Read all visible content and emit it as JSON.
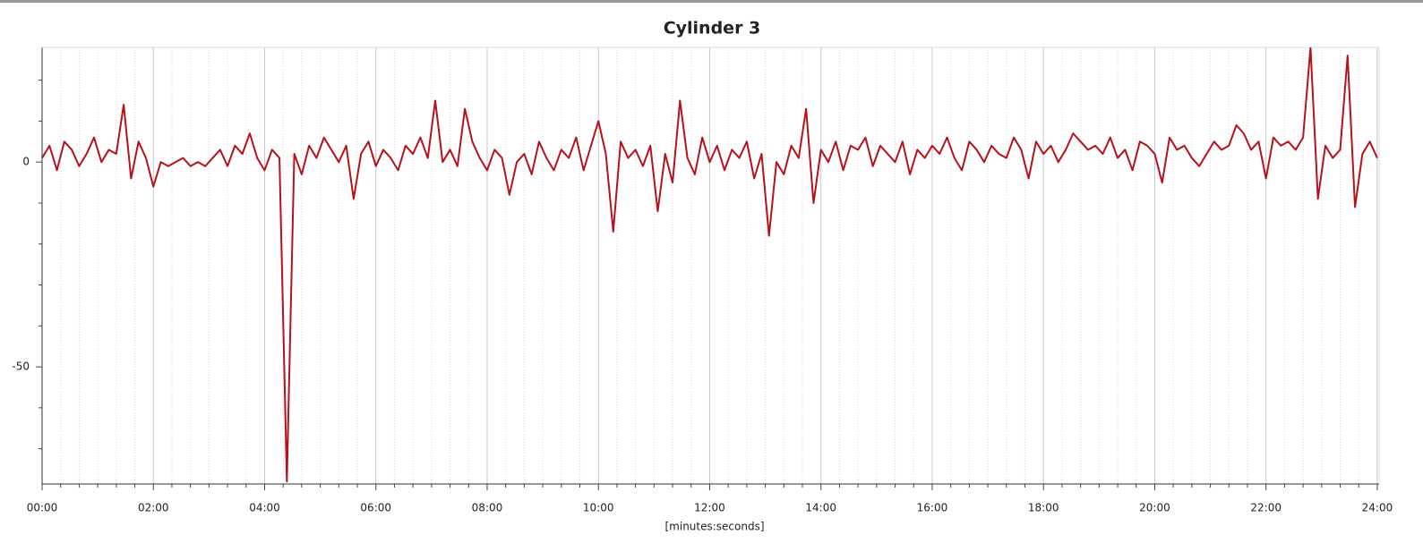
{
  "chart_data": {
    "type": "line",
    "title": "Cylinder 3",
    "x_label": "[minutes:seconds]",
    "xlim": [
      0,
      1442
    ],
    "ylim": [
      -78.6,
      28
    ],
    "xticks": [
      {
        "value": 0,
        "label": "00:00"
      },
      {
        "value": 120,
        "label": "02:00"
      },
      {
        "value": 240,
        "label": "04:00"
      },
      {
        "value": 360,
        "label": "06:00"
      },
      {
        "value": 480,
        "label": "08:00"
      },
      {
        "value": 600,
        "label": "10:00"
      },
      {
        "value": 720,
        "label": "12:00"
      },
      {
        "value": 840,
        "label": "14:00"
      },
      {
        "value": 960,
        "label": "16:00"
      },
      {
        "value": 1080,
        "label": "18:00"
      },
      {
        "value": 1200,
        "label": "20:00"
      },
      {
        "value": 1320,
        "label": "22:00"
      },
      {
        "value": 1440,
        "label": "24:00"
      }
    ],
    "yticks": [
      0,
      -50
    ],
    "yminorticks": [
      20,
      10,
      -10,
      -20,
      -30,
      -40,
      -60,
      -70
    ],
    "grid": true,
    "x": [
      0,
      8,
      16,
      24,
      32,
      40,
      48,
      56,
      64,
      72,
      80,
      88,
      96,
      104,
      112,
      120,
      128,
      136,
      144,
      152,
      160,
      168,
      176,
      184,
      192,
      200,
      208,
      216,
      224,
      232,
      240,
      248,
      256,
      264,
      272,
      280,
      288,
      296,
      304,
      312,
      320,
      328,
      336,
      344,
      352,
      360,
      368,
      376,
      384,
      392,
      400,
      408,
      416,
      424,
      432,
      440,
      448,
      456,
      464,
      472,
      480,
      488,
      496,
      504,
      512,
      520,
      528,
      536,
      544,
      552,
      560,
      568,
      576,
      584,
      592,
      600,
      608,
      616,
      624,
      632,
      640,
      648,
      656,
      664,
      672,
      680,
      688,
      696,
      704,
      712,
      720,
      728,
      736,
      744,
      752,
      760,
      768,
      776,
      784,
      792,
      800,
      808,
      816,
      824,
      832,
      840,
      848,
      856,
      864,
      872,
      880,
      888,
      896,
      904,
      912,
      920,
      928,
      936,
      944,
      952,
      960,
      968,
      976,
      984,
      992,
      1000,
      1008,
      1016,
      1024,
      1032,
      1040,
      1048,
      1056,
      1064,
      1072,
      1080,
      1088,
      1096,
      1104,
      1112,
      1120,
      1128,
      1136,
      1144,
      1152,
      1160,
      1168,
      1176,
      1184,
      1192,
      1200,
      1208,
      1216,
      1224,
      1232,
      1240,
      1248,
      1256,
      1264,
      1272,
      1280,
      1288,
      1296,
      1304,
      1312,
      1320,
      1328,
      1336,
      1344,
      1352,
      1360,
      1368,
      1376,
      1384,
      1392,
      1400,
      1408,
      1416,
      1424,
      1432,
      1440
    ],
    "series": [
      {
        "color": "#b5121b",
        "values": [
          1,
          4,
          -2,
          5,
          3,
          -1,
          2,
          6,
          0,
          3,
          2,
          14,
          -4,
          5,
          1,
          -6,
          0,
          -1,
          0,
          1,
          -1,
          0,
          -1,
          1,
          3,
          -1,
          4,
          2,
          7,
          1,
          -2,
          3,
          1,
          -78,
          2,
          -3,
          4,
          1,
          6,
          3,
          0,
          4,
          -9,
          2,
          5,
          -1,
          3,
          1,
          -2,
          4,
          2,
          6,
          1,
          15,
          0,
          3,
          -1,
          13,
          5,
          1,
          -2,
          3,
          1,
          -8,
          0,
          2,
          -3,
          5,
          1,
          -2,
          3,
          1,
          6,
          -2,
          4,
          10,
          2,
          -17,
          5,
          1,
          3,
          -1,
          4,
          -12,
          2,
          -5,
          15,
          1,
          -3,
          6,
          0,
          4,
          -2,
          3,
          1,
          5,
          -4,
          2,
          -18,
          0,
          -3,
          4,
          1,
          13,
          -10,
          3,
          0,
          5,
          -2,
          4,
          3,
          6,
          -1,
          4,
          2,
          0,
          5,
          -3,
          3,
          1,
          4,
          2,
          6,
          1,
          -2,
          5,
          3,
          0,
          4,
          2,
          1,
          6,
          3,
          -4,
          5,
          2,
          4,
          0,
          3,
          7,
          5,
          3,
          4,
          2,
          6,
          1,
          3,
          -2,
          5,
          4,
          2,
          -5,
          6,
          3,
          4,
          1,
          -1,
          2,
          5,
          3,
          4,
          9,
          7,
          3,
          5,
          -4,
          6,
          4,
          5,
          3,
          6,
          28,
          -9,
          4,
          1,
          3,
          26,
          -11,
          2,
          5,
          1
        ]
      }
    ]
  }
}
